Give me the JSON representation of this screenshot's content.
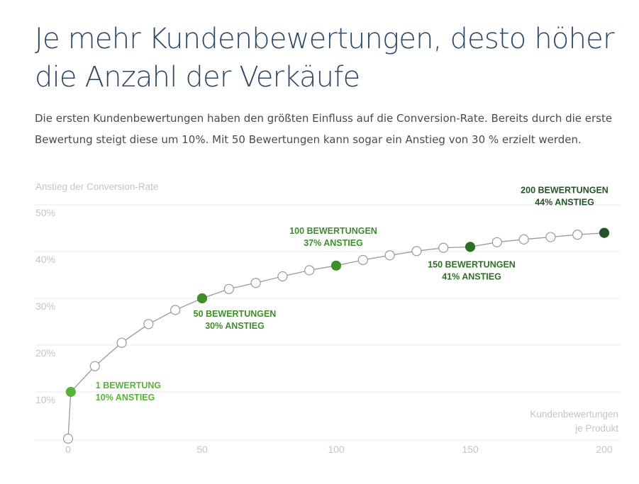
{
  "header": {
    "title": "Je mehr Kundenbewertungen, desto höher die Anzahl der Verkäufe",
    "subtitle": "Die ersten Kundenbewertungen haben den größten Einfluss auf die Conversion-Rate. Bereits durch die erste Bewertung steigt diese um 10%. Mit 50 Bewertungen kann sogar ein Anstieg von 30 % erzielt werden."
  },
  "colors": {
    "title": "#2e4a66",
    "grid": "#e8e8e8",
    "line": "#9a9a9a",
    "axis_text": "#c4c4c4",
    "green_light": "#57b33a",
    "green_mid": "#3e8e2a",
    "green_dark": "#2f6e27",
    "green_darkest": "#24542a"
  },
  "chart_data": {
    "type": "line",
    "ylabel": "Anstieg der Conversion-Rate",
    "xlabel": [
      "Kundenbewertungen",
      "je Produkt"
    ],
    "xlim": [
      0,
      200
    ],
    "ylim": [
      0,
      50
    ],
    "x_ticks": [
      0,
      50,
      100,
      150,
      200
    ],
    "y_ticks": [
      10,
      20,
      30,
      40,
      50
    ],
    "y_tick_labels": [
      "10%",
      "20%",
      "30%",
      "40%",
      "50%"
    ],
    "grid": true,
    "series": [
      {
        "x": [
          0,
          1,
          10,
          20,
          30,
          40,
          50,
          60,
          70,
          80,
          90,
          100,
          110,
          120,
          130,
          140,
          150,
          160,
          170,
          180,
          190,
          200
        ],
        "y": [
          0,
          10,
          15.5,
          20.5,
          24.5,
          27.5,
          30,
          32,
          33.3,
          34.7,
          36,
          37,
          38.2,
          39.2,
          40.1,
          40.8,
          41,
          42,
          42.6,
          43.1,
          43.6,
          44
        ]
      }
    ],
    "annotations": [
      {
        "x": 1,
        "y": 10,
        "color": "#57b33a",
        "lines": [
          "1 BEWERTUNG",
          "10% ANSTIEG"
        ]
      },
      {
        "x": 50,
        "y": 30,
        "color": "#3e8e2a",
        "lines": [
          "50 BEWERTUNGEN",
          "30% ANSTIEG"
        ]
      },
      {
        "x": 100,
        "y": 37,
        "color": "#3e8e2a",
        "lines": [
          "100 BEWERTUNGEN",
          "37% ANSTIEG"
        ]
      },
      {
        "x": 150,
        "y": 41,
        "color": "#2f6e27",
        "lines": [
          "150 BEWERTUNGEN",
          "41% ANSTIEG"
        ]
      },
      {
        "x": 200,
        "y": 44,
        "color": "#24542a",
        "lines": [
          "200 BEWERTUNGEN",
          "44% ANSTIEG"
        ]
      }
    ]
  }
}
